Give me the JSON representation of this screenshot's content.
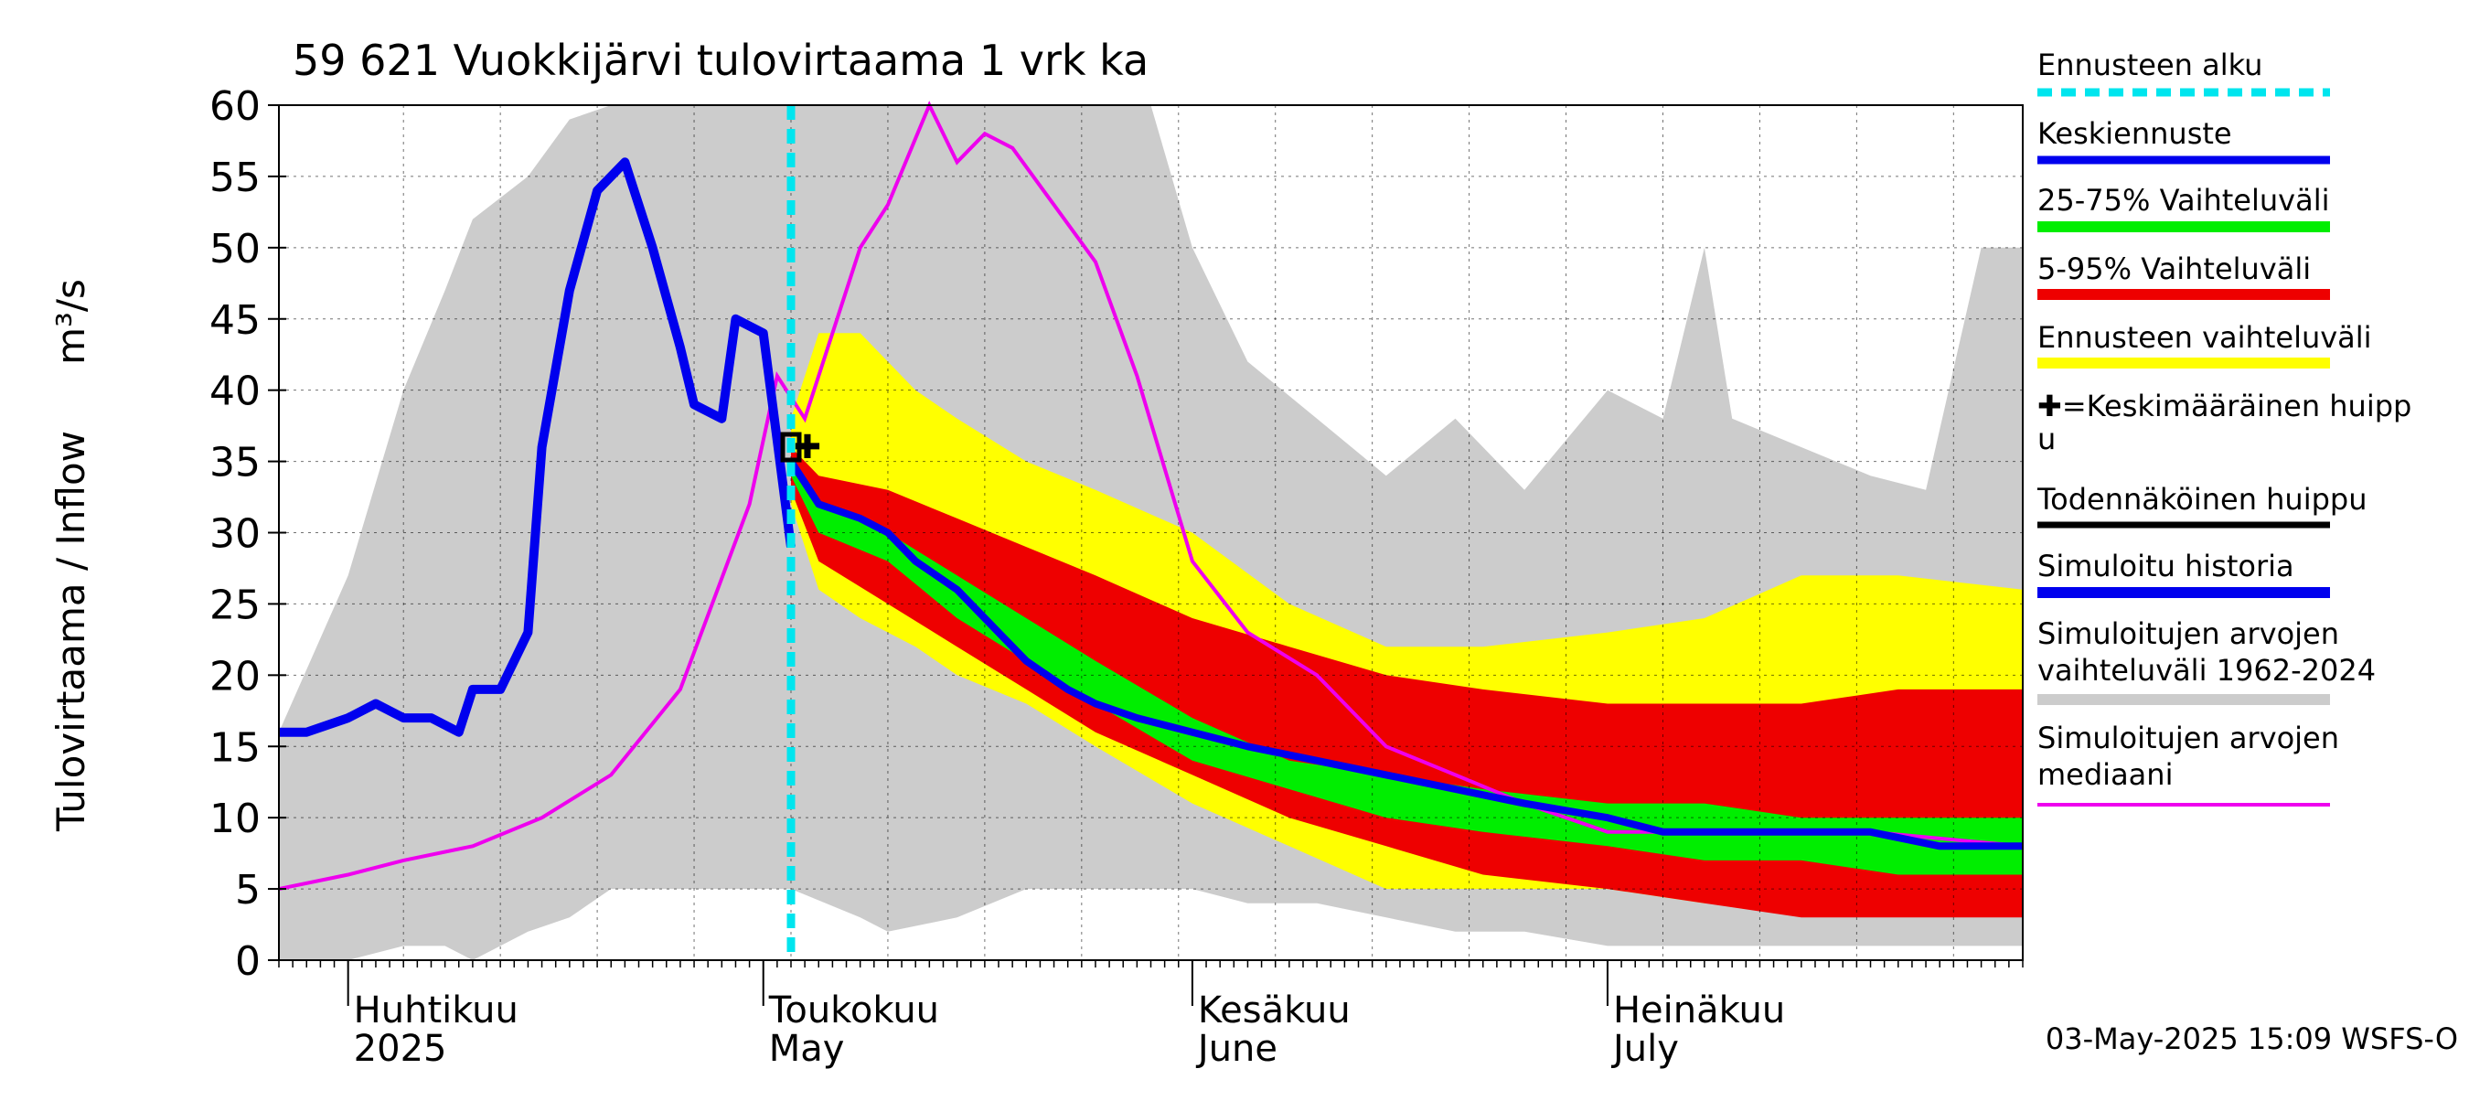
{
  "chart_data": {
    "type": "area",
    "title": "59 621 Vuokkijärvi tulovirtaama 1 vrk ka",
    "ylabel": "Tulovirtaama / Inflow",
    "yunit": "m³/s",
    "ylim": [
      0,
      60
    ],
    "yticks": [
      0,
      5,
      10,
      15,
      20,
      25,
      30,
      35,
      40,
      45,
      50,
      55,
      60
    ],
    "xlim": [
      "2025-03-27",
      "2025-07-31"
    ],
    "month_labels": [
      {
        "date": "2025-04-01",
        "fi": "Huhtikuu",
        "en": "2025"
      },
      {
        "date": "2025-05-01",
        "fi": "Toukokuu",
        "en": "May"
      },
      {
        "date": "2025-06-01",
        "fi": "Kesäkuu",
        "en": "June"
      },
      {
        "date": "2025-07-01",
        "fi": "Heinäkuu",
        "en": "July"
      }
    ],
    "grid": true,
    "legend_position": "right",
    "footer": "03-May-2025 15:09 WSFS-O",
    "colors": {
      "forecast_start": "#00e5ee",
      "mean_forecast": "#0000ee",
      "iqr_band": "#00ee00",
      "p5_95_band": "#ee0000",
      "forecast_range": "#ffff00",
      "probable_peak": "#000000",
      "simulated_history": "#0000ee",
      "history_range": "#cccccc",
      "history_median": "#ee00ee"
    },
    "legend": [
      {
        "key": "forecast_start",
        "label": "Ennusteen alku"
      },
      {
        "key": "mean_forecast",
        "label": "Keskiennuste"
      },
      {
        "key": "iqr_band",
        "label": "25-75% Vaihteluväli"
      },
      {
        "key": "p5_95_band",
        "label": "5-95% Vaihteluväli"
      },
      {
        "key": "forecast_range",
        "label": "Ennusteen vaihteluväli"
      },
      {
        "key": "mean_peak",
        "label": "✚=Keskimääräinen huippu"
      },
      {
        "key": "probable_peak",
        "label": "Todennäköinen huippu"
      },
      {
        "key": "simulated_history",
        "label": "Simuloitu historia"
      },
      {
        "key": "history_range",
        "label": "Simuloitujen arvojen vaihteluväli 1962-2024"
      },
      {
        "key": "history_median",
        "label": "Simuloitujen arvojen mediaani"
      }
    ],
    "forecast_start_date": "2025-05-03",
    "mean_peak": {
      "date": "2025-05-03",
      "value": 36
    },
    "probable_peak": {
      "date": "2025-05-03",
      "value": 36
    },
    "history_range": {
      "x": [
        "2025-03-27",
        "2025-04-01",
        "2025-04-05",
        "2025-04-08",
        "2025-04-10",
        "2025-04-14",
        "2025-04-17",
        "2025-04-20",
        "2025-04-25",
        "2025-04-30",
        "2025-05-03",
        "2025-05-08",
        "2025-05-10",
        "2025-05-15",
        "2025-05-20",
        "2025-05-25",
        "2025-05-29",
        "2025-06-01",
        "2025-06-05",
        "2025-06-10",
        "2025-06-15",
        "2025-06-20",
        "2025-06-25",
        "2025-07-01",
        "2025-07-05",
        "2025-07-08",
        "2025-07-10",
        "2025-07-15",
        "2025-07-20",
        "2025-07-24",
        "2025-07-28",
        "2025-07-31"
      ],
      "upper": [
        16,
        27,
        40,
        47,
        52,
        55,
        59,
        60,
        60,
        60,
        60,
        60,
        60,
        60,
        60,
        60,
        60,
        50,
        42,
        38,
        34,
        38,
        33,
        40,
        38,
        50,
        38,
        36,
        34,
        33,
        50,
        50
      ],
      "lower": [
        0,
        0,
        1,
        1,
        0,
        2,
        3,
        5,
        5,
        5,
        5,
        3,
        2,
        3,
        5,
        5,
        5,
        5,
        4,
        4,
        3,
        2,
        2,
        1,
        1,
        1,
        1,
        1,
        1,
        1,
        1,
        1
      ]
    },
    "forecast_range": {
      "x": [
        "2025-05-03",
        "2025-05-05",
        "2025-05-08",
        "2025-05-12",
        "2025-05-15",
        "2025-05-20",
        "2025-05-25",
        "2025-06-01",
        "2025-06-08",
        "2025-06-15",
        "2025-06-22",
        "2025-07-01",
        "2025-07-08",
        "2025-07-15",
        "2025-07-22",
        "2025-07-31"
      ],
      "upper": [
        38,
        44,
        44,
        40,
        38,
        35,
        33,
        30,
        25,
        22,
        22,
        23,
        24,
        27,
        27,
        26
      ],
      "lower": [
        32,
        26,
        24,
        22,
        20,
        18,
        15,
        11,
        8,
        5,
        5,
        5,
        4,
        4,
        4,
        4
      ]
    },
    "p5_95_band": {
      "x": [
        "2025-05-03",
        "2025-05-05",
        "2025-05-10",
        "2025-05-15",
        "2025-05-20",
        "2025-05-25",
        "2025-06-01",
        "2025-06-08",
        "2025-06-15",
        "2025-06-22",
        "2025-07-01",
        "2025-07-08",
        "2025-07-15",
        "2025-07-22",
        "2025-07-31"
      ],
      "upper": [
        36,
        34,
        33,
        31,
        29,
        27,
        24,
        22,
        20,
        19,
        18,
        18,
        18,
        19,
        19
      ],
      "lower": [
        33,
        28,
        25,
        22,
        19,
        16,
        13,
        10,
        8,
        6,
        5,
        4,
        3,
        3,
        3
      ]
    },
    "iqr_band": {
      "x": [
        "2025-05-03",
        "2025-05-05",
        "2025-05-10",
        "2025-05-15",
        "2025-05-20",
        "2025-05-25",
        "2025-06-01",
        "2025-06-08",
        "2025-06-15",
        "2025-06-22",
        "2025-07-01",
        "2025-07-08",
        "2025-07-15",
        "2025-07-22",
        "2025-07-31"
      ],
      "upper": [
        35,
        32,
        30,
        27,
        24,
        21,
        17,
        14,
        13,
        12,
        11,
        11,
        10,
        10,
        10
      ],
      "lower": [
        34,
        30,
        28,
        24,
        21,
        18,
        14,
        12,
        10,
        9,
        8,
        7,
        7,
        6,
        6
      ]
    },
    "simulated_history": {
      "x": [
        "2025-03-27",
        "2025-03-29",
        "2025-04-01",
        "2025-04-03",
        "2025-04-05",
        "2025-04-07",
        "2025-04-09",
        "2025-04-10",
        "2025-04-12",
        "2025-04-14",
        "2025-04-15",
        "2025-04-17",
        "2025-04-19",
        "2025-04-21",
        "2025-04-23",
        "2025-04-25",
        "2025-04-26",
        "2025-04-28",
        "2025-04-29",
        "2025-05-01",
        "2025-05-03"
      ],
      "values": [
        16,
        16,
        17,
        18,
        17,
        17,
        16,
        19,
        19,
        23,
        36,
        47,
        54,
        56,
        50,
        43,
        39,
        38,
        45,
        44,
        29
      ]
    },
    "mean_forecast": {
      "x": [
        "2025-05-03",
        "2025-05-05",
        "2025-05-08",
        "2025-05-10",
        "2025-05-12",
        "2025-05-15",
        "2025-05-18",
        "2025-05-20",
        "2025-05-23",
        "2025-05-25",
        "2025-05-28",
        "2025-06-01",
        "2025-06-05",
        "2025-06-10",
        "2025-06-15",
        "2025-06-20",
        "2025-06-25",
        "2025-07-01",
        "2025-07-05",
        "2025-07-10",
        "2025-07-15",
        "2025-07-20",
        "2025-07-25",
        "2025-07-31"
      ],
      "values": [
        35,
        32,
        31,
        30,
        28,
        26,
        23,
        21,
        19,
        18,
        17,
        16,
        15,
        14,
        13,
        12,
        11,
        10,
        9,
        9,
        9,
        9,
        8,
        8
      ]
    },
    "history_median": {
      "x": [
        "2025-03-27",
        "2025-04-01",
        "2025-04-05",
        "2025-04-10",
        "2025-04-15",
        "2025-04-20",
        "2025-04-25",
        "2025-04-30",
        "2025-05-02",
        "2025-05-04",
        "2025-05-08",
        "2025-05-10",
        "2025-05-13",
        "2025-05-15",
        "2025-05-17",
        "2025-05-19",
        "2025-05-22",
        "2025-05-25",
        "2025-05-28",
        "2025-06-01",
        "2025-06-05",
        "2025-06-10",
        "2025-06-15",
        "2025-06-20",
        "2025-06-25",
        "2025-07-01",
        "2025-07-10",
        "2025-07-20",
        "2025-07-31"
      ],
      "values": [
        5,
        6,
        7,
        8,
        10,
        13,
        19,
        32,
        41,
        38,
        50,
        53,
        60,
        56,
        58,
        57,
        53,
        49,
        41,
        28,
        23,
        20,
        15,
        13,
        11,
        9,
        9,
        9,
        8
      ]
    }
  }
}
